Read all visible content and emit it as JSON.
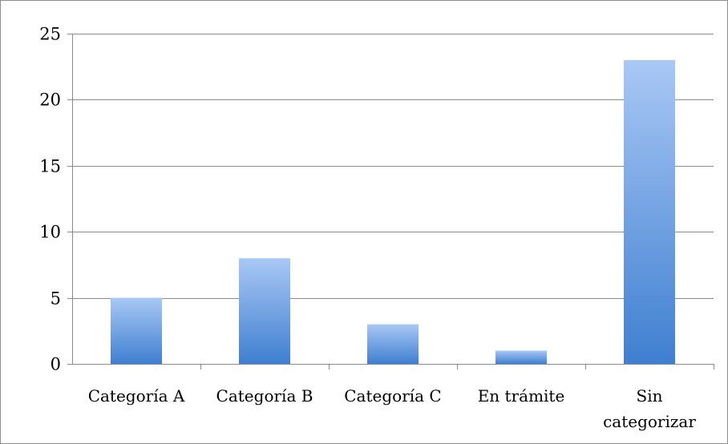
{
  "chart_data": {
    "type": "bar",
    "title": "",
    "xlabel": "",
    "ylabel": "",
    "categories": [
      [
        "Categoría A"
      ],
      [
        "Categoría B"
      ],
      [
        "Categoría C"
      ],
      [
        "En trámite"
      ],
      [
        "Sin",
        "categorizar"
      ]
    ],
    "values": [
      5,
      8,
      3,
      1,
      23
    ],
    "ylim": [
      0,
      25
    ],
    "yticks": [
      0,
      5,
      10,
      15,
      20,
      25
    ],
    "grid": true,
    "legend": "none",
    "colors": {
      "bar_top": "#a9c8f5",
      "bar_bottom": "#3f7fd0",
      "gridline": "#8c8c8c",
      "axis": "#8c8c8c",
      "frame": "#8c8c8c"
    }
  }
}
